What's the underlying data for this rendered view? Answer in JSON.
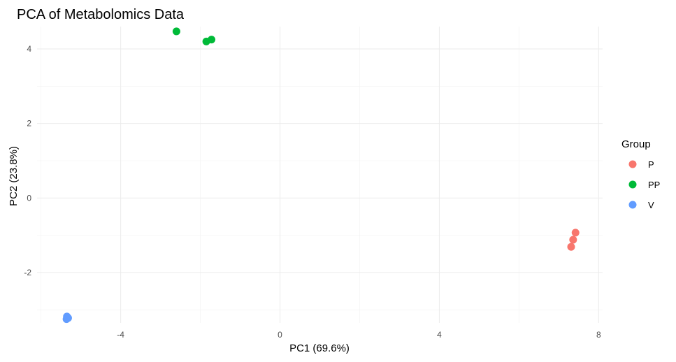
{
  "chart_data": {
    "type": "scatter",
    "title": "PCA of Metabolomics Data",
    "xlabel": "PC1 (69.6%)",
    "ylabel": "PC2 (23.8%)",
    "xlim": [
      -6.1,
      8.1
    ],
    "ylim": [
      -3.35,
      4.6
    ],
    "x_ticks": [
      -4,
      0,
      4,
      8
    ],
    "y_ticks": [
      -2,
      0,
      2,
      4
    ],
    "grid": true,
    "legend_title": "Group",
    "legend_position": "right",
    "series": [
      {
        "name": "P",
        "color": "#F8766D",
        "points": [
          [
            7.42,
            -0.93
          ],
          [
            7.36,
            -1.12
          ],
          [
            7.31,
            -1.31
          ]
        ]
      },
      {
        "name": "PP",
        "color": "#00BA38",
        "points": [
          [
            -2.6,
            4.47
          ],
          [
            -1.85,
            4.2
          ],
          [
            -1.72,
            4.25
          ]
        ]
      },
      {
        "name": "V",
        "color": "#619CFF",
        "points": [
          [
            -5.35,
            -3.18
          ],
          [
            -5.32,
            -3.22
          ],
          [
            -5.36,
            -3.25
          ]
        ]
      }
    ]
  }
}
